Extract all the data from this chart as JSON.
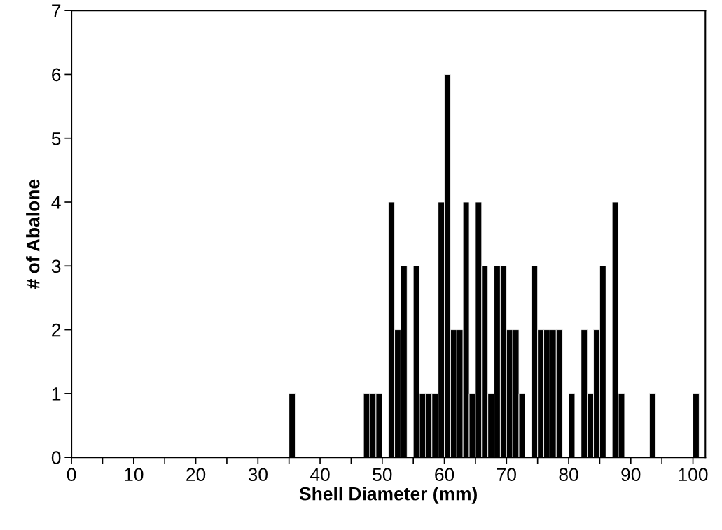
{
  "chart_data": {
    "type": "histogram",
    "xlabel": "Shell Diameter (mm)",
    "ylabel": "# of Abalone",
    "color": "#000000",
    "bins": [
      0,
      1,
      2,
      3,
      4,
      5,
      6,
      7,
      8,
      9,
      10,
      11,
      12,
      13,
      14,
      15,
      16,
      17,
      18,
      19,
      20,
      21,
      22,
      23,
      24,
      25,
      26,
      27,
      28,
      29,
      30,
      31,
      32,
      33,
      34,
      35,
      36,
      37,
      38,
      39,
      40,
      41,
      42,
      43,
      44,
      45,
      46,
      47,
      48,
      49,
      50,
      51,
      52,
      53,
      54,
      55,
      56,
      57,
      58,
      59,
      60,
      61,
      62,
      63,
      64,
      65,
      66,
      67,
      68,
      69,
      70,
      71,
      72,
      73,
      74,
      75,
      76,
      77,
      78,
      79,
      80,
      81,
      82,
      83,
      84,
      85,
      86,
      87,
      88,
      89,
      90,
      91,
      92,
      93,
      94,
      95,
      96,
      97,
      98,
      99,
      100,
      101,
      102
    ],
    "values": [
      0,
      0,
      0,
      0,
      0,
      0,
      0,
      0,
      0,
      0,
      0,
      0,
      0,
      0,
      0,
      0,
      0,
      0,
      0,
      0,
      0,
      0,
      0,
      0,
      0,
      0,
      0,
      0,
      0,
      0,
      0,
      0,
      0,
      0,
      0,
      1,
      0,
      0,
      0,
      0,
      0,
      0,
      0,
      0,
      0,
      0,
      0,
      1,
      1,
      1,
      0,
      4,
      2,
      3,
      0,
      3,
      1,
      1,
      1,
      4,
      6,
      2,
      2,
      4,
      1,
      4,
      3,
      1,
      3,
      3,
      2,
      2,
      1,
      0,
      3,
      2,
      2,
      2,
      2,
      0,
      1,
      0,
      2,
      1,
      2,
      3,
      0,
      4,
      1,
      0,
      0,
      0,
      0,
      1,
      0,
      0,
      0,
      0,
      0,
      0,
      1,
      0
    ],
    "xlim": [
      0,
      102
    ],
    "ylim": [
      0,
      7
    ],
    "xticks": [
      0,
      {
        "value": 5,
        "label": null
      },
      10,
      {
        "value": 15,
        "label": null
      },
      20,
      {
        "value": 25,
        "label": null
      },
      30,
      {
        "value": 35,
        "label": null
      },
      40,
      {
        "value": 45,
        "label": null
      },
      50,
      {
        "value": 55,
        "label": null
      },
      60,
      {
        "value": 65,
        "label": null
      },
      70,
      {
        "value": 75,
        "label": null
      },
      80,
      {
        "value": 85,
        "label": null
      },
      90,
      {
        "value": 95,
        "label": null
      },
      100
    ],
    "yticks": [
      0,
      1,
      2,
      3,
      4,
      5,
      6,
      7
    ],
    "grid": false,
    "legend": false
  }
}
